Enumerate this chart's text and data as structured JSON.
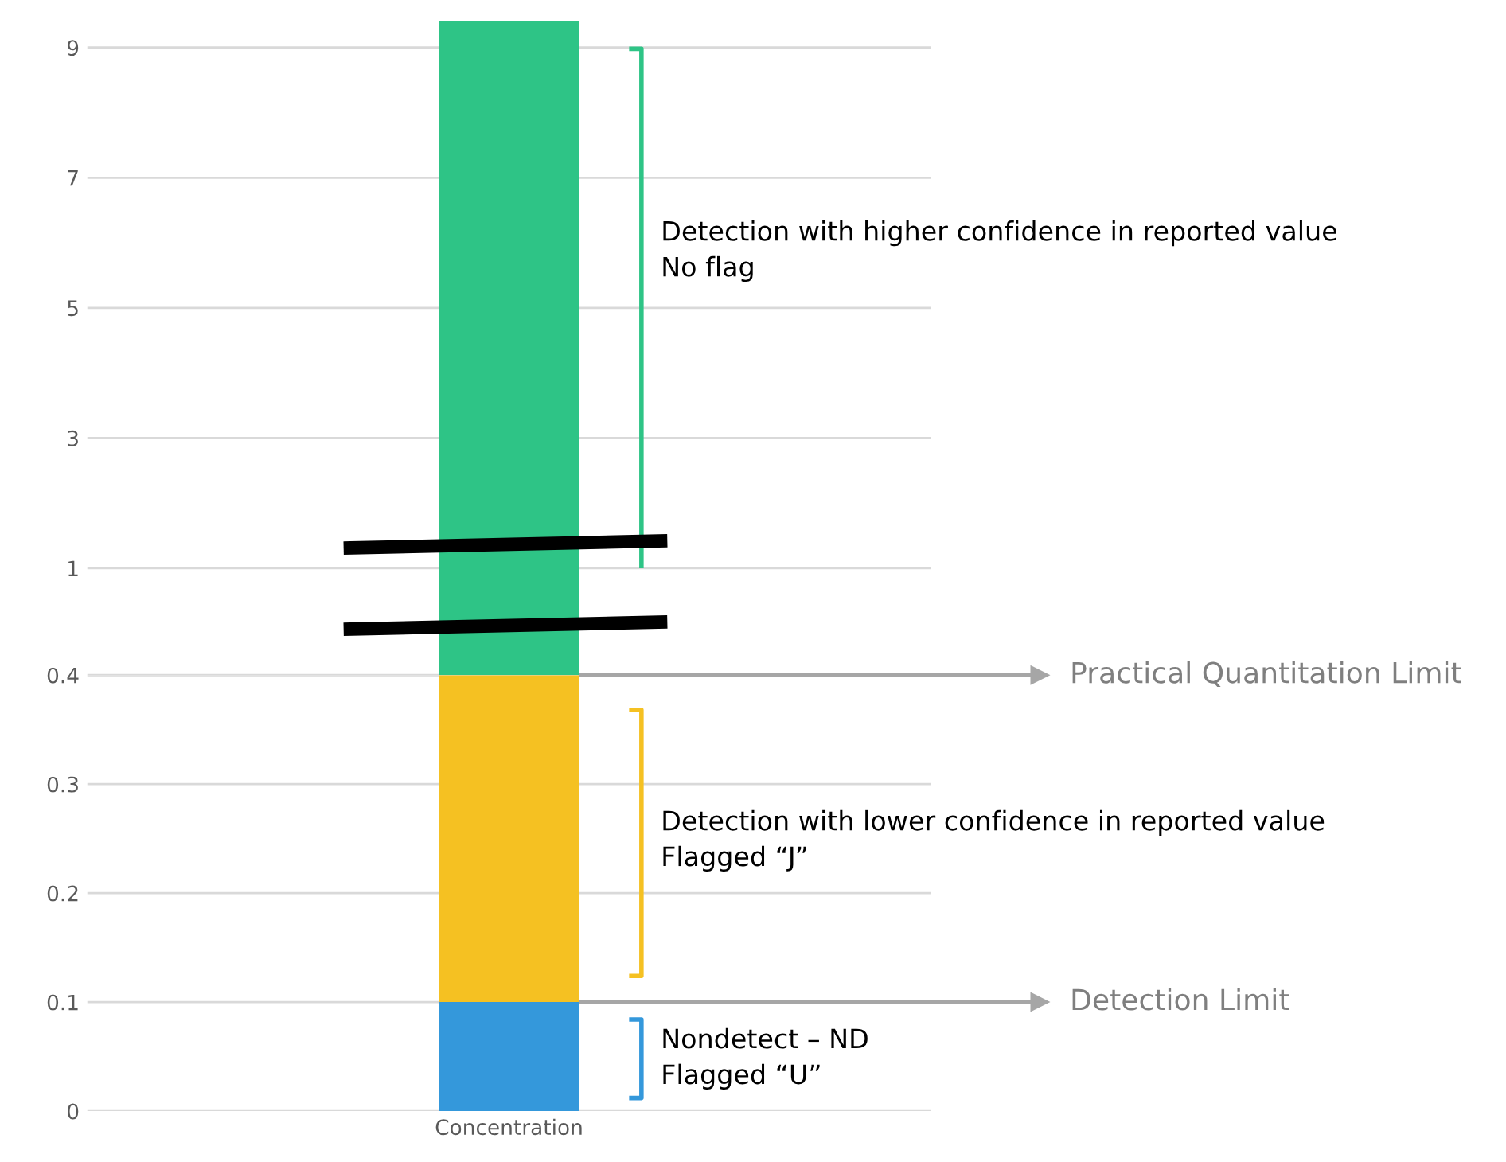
{
  "chart_data": [
    {
      "type": "bar",
      "categories": [
        null
      ],
      "tick_labels": "y",
      "series": [
        {
          "color": "#2ec486",
          "values": [
            8.4
          ],
          "base": [
            1
          ]
        }
      ],
      "ylim": [
        1,
        9.4
      ],
      "yticks": [
        {
          "value": 1,
          "label": null
        },
        3,
        5,
        7,
        9
      ],
      "grid": "y",
      "annotations": [
        "Detection with higher confidence in reported value\nNo flag"
      ]
    },
    {
      "type": "bar",
      "categories": [
        null
      ],
      "tick_labels": "y",
      "series": [
        {
          "color": "#2ec486",
          "values": [
            0.6
          ],
          "base": [
            0.4
          ]
        }
      ],
      "ylim": [
        0.4,
        1
      ],
      "yticks": [
        0.4,
        1
      ],
      "grid": "y"
    },
    {
      "type": "bar",
      "stacked": true,
      "categories": [
        "Concentration"
      ],
      "series": [
        {
          "color": "#3498db",
          "values": [
            0.1
          ]
        },
        {
          "color": "#f5c122",
          "values": [
            0.3
          ]
        }
      ],
      "ylim": [
        0,
        0.4
      ],
      "yticks": [
        0,
        0.1,
        0.2,
        0.3,
        {
          "value": 0.4,
          "label": null
        }
      ],
      "grid": "y",
      "ref_lines": [
        {
          "axis": "y",
          "value": 0.4,
          "label": "Practical Quantitation Limit",
          "color": "#a6a6a6"
        },
        {
          "axis": "y",
          "value": 0.1,
          "label": "Detection Limit",
          "color": "#a6a6a6"
        }
      ],
      "annotations": [
        "Nondetect – ND\nFlagged “U”",
        "Detection with lower confidence in reported value\nFlagged “J”"
      ]
    }
  ]
}
